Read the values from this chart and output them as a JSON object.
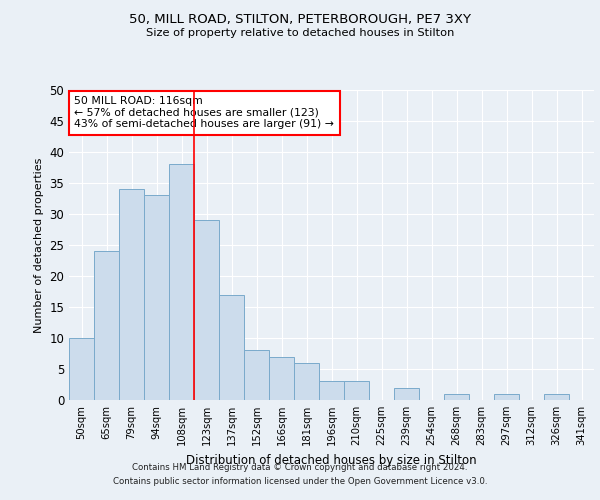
{
  "title1": "50, MILL ROAD, STILTON, PETERBOROUGH, PE7 3XY",
  "title2": "Size of property relative to detached houses in Stilton",
  "xlabel": "Distribution of detached houses by size in Stilton",
  "ylabel": "Number of detached properties",
  "categories": [
    "50sqm",
    "65sqm",
    "79sqm",
    "94sqm",
    "108sqm",
    "123sqm",
    "137sqm",
    "152sqm",
    "166sqm",
    "181sqm",
    "196sqm",
    "210sqm",
    "225sqm",
    "239sqm",
    "254sqm",
    "268sqm",
    "283sqm",
    "297sqm",
    "312sqm",
    "326sqm",
    "341sqm"
  ],
  "values": [
    10,
    24,
    34,
    33,
    38,
    29,
    17,
    8,
    7,
    6,
    3,
    3,
    0,
    2,
    0,
    1,
    0,
    1,
    0,
    1,
    0
  ],
  "bar_color": "#ccdcec",
  "bar_edge_color": "#7aaacb",
  "vline_x_index": 5,
  "vline_color": "red",
  "ylim": [
    0,
    50
  ],
  "yticks": [
    0,
    5,
    10,
    15,
    20,
    25,
    30,
    35,
    40,
    45,
    50
  ],
  "annotation_text": "50 MILL ROAD: 116sqm\n← 57% of detached houses are smaller (123)\n43% of semi-detached houses are larger (91) →",
  "annotation_box_color": "white",
  "annotation_box_edge_color": "red",
  "footer_line1": "Contains HM Land Registry data © Crown copyright and database right 2024.",
  "footer_line2": "Contains public sector information licensed under the Open Government Licence v3.0.",
  "bg_color": "#eaf0f6",
  "plot_bg_color": "#eaf0f6",
  "grid_color": "white"
}
